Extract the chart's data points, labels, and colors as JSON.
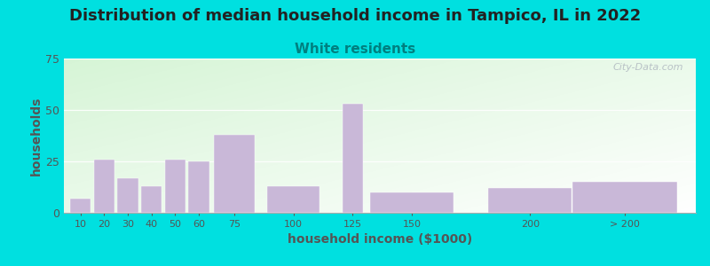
{
  "title": "Distribution of median household income in Tampico, IL in 2022",
  "subtitle": "White residents",
  "xlabel": "household income ($1000)",
  "ylabel": "households",
  "bar_labels": [
    "10",
    "20",
    "30",
    "40",
    "50",
    "60",
    "75",
    "100",
    "125",
    "150",
    "200",
    "> 200"
  ],
  "bar_values": [
    7,
    26,
    17,
    13,
    26,
    25,
    38,
    13,
    53,
    10,
    12,
    15
  ],
  "bar_color": "#c9b8d8",
  "ylim": [
    0,
    75
  ],
  "yticks": [
    0,
    25,
    50,
    75
  ],
  "background_outer": "#00e0e0",
  "title_fontsize": 13,
  "subtitle_fontsize": 11,
  "subtitle_color": "#008080",
  "axis_label_color": "#555555",
  "tick_color": "#555555",
  "watermark": "City-Data.com",
  "x_positions": [
    10,
    20,
    30,
    40,
    50,
    60,
    75,
    100,
    125,
    150,
    200,
    240
  ],
  "x_widths": [
    10,
    10,
    10,
    10,
    10,
    10,
    20,
    25,
    10,
    40,
    40,
    50
  ]
}
